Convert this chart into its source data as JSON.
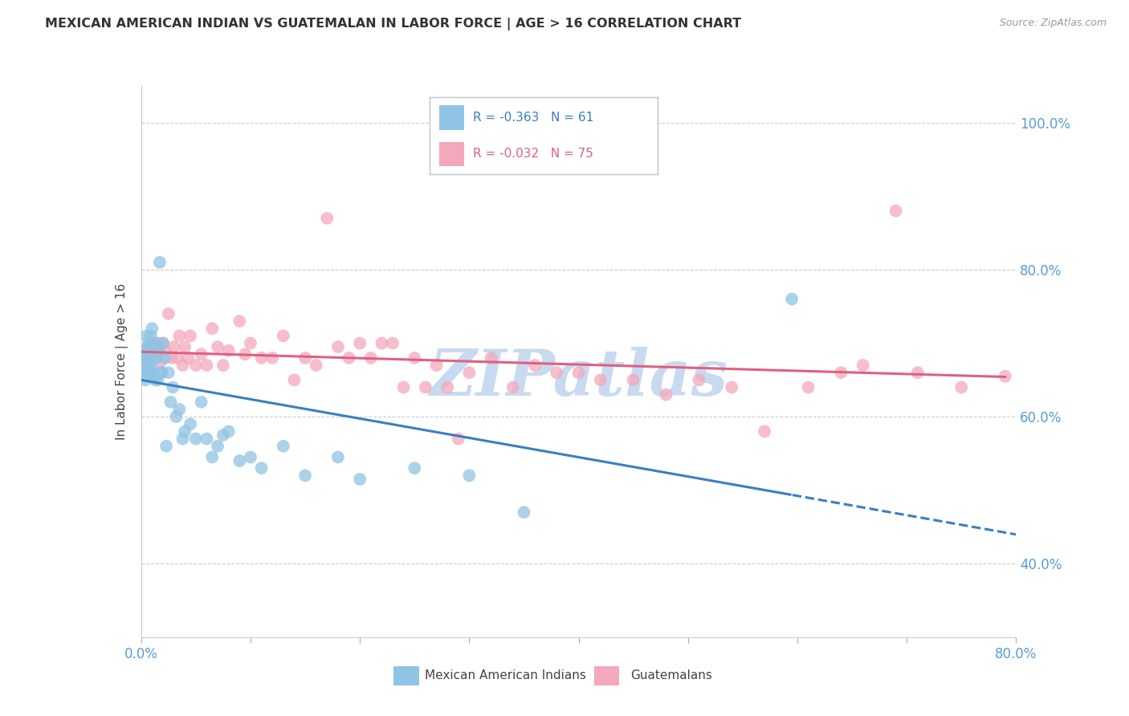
{
  "title": "MEXICAN AMERICAN INDIAN VS GUATEMALAN IN LABOR FORCE | AGE > 16 CORRELATION CHART",
  "source": "Source: ZipAtlas.com",
  "ylabel": "In Labor Force | Age > 16",
  "xlim": [
    0.0,
    0.8
  ],
  "ylim": [
    0.3,
    1.05
  ],
  "x_ticks": [
    0.0,
    0.1,
    0.2,
    0.3,
    0.4,
    0.5,
    0.6,
    0.7,
    0.8
  ],
  "y_ticks": [
    0.4,
    0.6,
    0.8,
    1.0
  ],
  "right_y_labels": [
    "40.0%",
    "60.0%",
    "80.0%",
    "100.0%"
  ],
  "blue_R": -0.363,
  "blue_N": 61,
  "pink_R": -0.032,
  "pink_N": 75,
  "blue_color": "#90c4e4",
  "pink_color": "#f4a8bc",
  "blue_line_color": "#3a7fc1",
  "pink_line_color": "#e06080",
  "watermark_color": "#c8daf0",
  "watermark_text": "ZIPatlas",
  "legend_label_blue": "Mexican American Indians",
  "legend_label_pink": "Guatemalans",
  "blue_scatter_x": [
    0.001,
    0.002,
    0.003,
    0.003,
    0.004,
    0.004,
    0.005,
    0.005,
    0.005,
    0.006,
    0.006,
    0.007,
    0.007,
    0.008,
    0.008,
    0.009,
    0.009,
    0.01,
    0.01,
    0.01,
    0.011,
    0.011,
    0.012,
    0.013,
    0.013,
    0.014,
    0.015,
    0.015,
    0.016,
    0.017,
    0.018,
    0.019,
    0.02,
    0.022,
    0.023,
    0.025,
    0.027,
    0.029,
    0.032,
    0.035,
    0.038,
    0.04,
    0.045,
    0.05,
    0.055,
    0.06,
    0.065,
    0.07,
    0.075,
    0.08,
    0.09,
    0.1,
    0.11,
    0.13,
    0.15,
    0.18,
    0.2,
    0.25,
    0.3,
    0.35,
    0.595
  ],
  "blue_scatter_y": [
    0.685,
    0.67,
    0.68,
    0.66,
    0.69,
    0.65,
    0.68,
    0.66,
    0.71,
    0.695,
    0.665,
    0.7,
    0.66,
    0.695,
    0.665,
    0.71,
    0.68,
    0.695,
    0.665,
    0.72,
    0.695,
    0.655,
    0.68,
    0.7,
    0.65,
    0.68,
    0.69,
    0.65,
    0.69,
    0.81,
    0.66,
    0.66,
    0.7,
    0.68,
    0.56,
    0.66,
    0.62,
    0.64,
    0.6,
    0.61,
    0.57,
    0.58,
    0.59,
    0.57,
    0.62,
    0.57,
    0.545,
    0.56,
    0.575,
    0.58,
    0.54,
    0.545,
    0.53,
    0.56,
    0.52,
    0.545,
    0.515,
    0.53,
    0.52,
    0.47,
    0.76
  ],
  "pink_scatter_x": [
    0.001,
    0.002,
    0.003,
    0.004,
    0.005,
    0.006,
    0.007,
    0.008,
    0.009,
    0.01,
    0.011,
    0.012,
    0.014,
    0.015,
    0.016,
    0.018,
    0.02,
    0.022,
    0.025,
    0.028,
    0.03,
    0.033,
    0.035,
    0.038,
    0.04,
    0.043,
    0.045,
    0.05,
    0.055,
    0.06,
    0.065,
    0.07,
    0.075,
    0.08,
    0.09,
    0.095,
    0.1,
    0.11,
    0.12,
    0.13,
    0.14,
    0.15,
    0.16,
    0.17,
    0.18,
    0.19,
    0.2,
    0.21,
    0.22,
    0.23,
    0.24,
    0.25,
    0.26,
    0.27,
    0.28,
    0.29,
    0.3,
    0.32,
    0.34,
    0.36,
    0.38,
    0.4,
    0.42,
    0.45,
    0.48,
    0.51,
    0.54,
    0.57,
    0.61,
    0.64,
    0.66,
    0.69,
    0.71,
    0.75,
    0.79
  ],
  "pink_scatter_y": [
    0.68,
    0.67,
    0.665,
    0.675,
    0.68,
    0.67,
    0.685,
    0.665,
    0.68,
    0.695,
    0.685,
    0.7,
    0.69,
    0.685,
    0.7,
    0.675,
    0.7,
    0.69,
    0.74,
    0.68,
    0.695,
    0.68,
    0.71,
    0.67,
    0.695,
    0.68,
    0.71,
    0.67,
    0.685,
    0.67,
    0.72,
    0.695,
    0.67,
    0.69,
    0.73,
    0.685,
    0.7,
    0.68,
    0.68,
    0.71,
    0.65,
    0.68,
    0.67,
    0.87,
    0.695,
    0.68,
    0.7,
    0.68,
    0.7,
    0.7,
    0.64,
    0.68,
    0.64,
    0.67,
    0.64,
    0.57,
    0.66,
    0.68,
    0.64,
    0.67,
    0.66,
    0.66,
    0.65,
    0.65,
    0.63,
    0.65,
    0.64,
    0.58,
    0.64,
    0.66,
    0.67,
    0.88,
    0.66,
    0.64,
    0.655
  ]
}
